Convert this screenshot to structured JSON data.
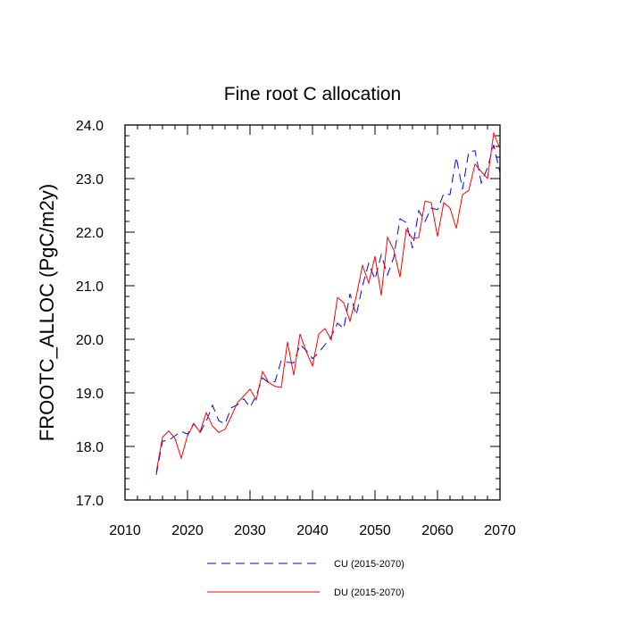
{
  "chart_data": {
    "type": "line",
    "title": "Fine root C allocation",
    "xlabel": "",
    "ylabel": "FROOTC_ALLOC  (PgC/m2y)",
    "xlim": [
      2010,
      2070
    ],
    "ylim": [
      17.0,
      24.0
    ],
    "xticks": [
      2010,
      2020,
      2030,
      2040,
      2050,
      2060,
      2070
    ],
    "xtick_labels": [
      "2010",
      "2020",
      "2030",
      "2040",
      "2050",
      "2060",
      "2070"
    ],
    "yticks": [
      17.0,
      18.0,
      19.0,
      20.0,
      21.0,
      22.0,
      23.0,
      24.0
    ],
    "ytick_labels": [
      "17.0",
      "18.0",
      "19.0",
      "20.0",
      "21.0",
      "22.0",
      "23.0",
      "24.0"
    ],
    "grid": false,
    "legend_position": "bottom",
    "x": [
      2015,
      2016,
      2017,
      2018,
      2019,
      2020,
      2021,
      2022,
      2023,
      2024,
      2025,
      2026,
      2027,
      2028,
      2029,
      2030,
      2031,
      2032,
      2033,
      2034,
      2035,
      2036,
      2037,
      2038,
      2039,
      2040,
      2041,
      2042,
      2043,
      2044,
      2045,
      2046,
      2047,
      2048,
      2049,
      2050,
      2051,
      2052,
      2053,
      2054,
      2055,
      2056,
      2057,
      2058,
      2059,
      2060,
      2061,
      2062,
      2063,
      2064,
      2065,
      2066,
      2067,
      2068,
      2069,
      2070
    ],
    "series": [
      {
        "name": "CU (2015-2070)",
        "color": "#0000ff",
        "dash": "dashed",
        "values": [
          17.47,
          18.1,
          18.11,
          18.2,
          18.28,
          18.23,
          18.43,
          18.26,
          18.47,
          18.77,
          18.48,
          18.42,
          18.72,
          18.78,
          18.89,
          18.73,
          18.95,
          19.28,
          19.19,
          19.21,
          19.6,
          19.57,
          19.56,
          19.9,
          19.79,
          19.64,
          19.75,
          19.9,
          20.05,
          20.3,
          20.2,
          20.85,
          20.45,
          21.0,
          21.42,
          21.12,
          21.58,
          21.2,
          21.53,
          22.25,
          22.18,
          21.7,
          22.4,
          22.2,
          22.45,
          22.42,
          22.72,
          22.7,
          23.4,
          22.8,
          23.5,
          23.52,
          22.92,
          23.2,
          23.63,
          23.1
        ]
      },
      {
        "name": "DU (2015-2070)",
        "color": "#ff0000",
        "dash": "solid",
        "values": [
          17.52,
          18.17,
          18.29,
          18.15,
          17.78,
          18.2,
          18.42,
          18.27,
          18.63,
          18.38,
          18.26,
          18.32,
          18.56,
          18.82,
          18.94,
          19.07,
          18.87,
          19.4,
          19.19,
          19.12,
          19.1,
          19.95,
          19.33,
          20.1,
          19.77,
          19.5,
          20.1,
          20.2,
          19.99,
          20.78,
          20.68,
          20.34,
          20.8,
          21.38,
          21.05,
          21.55,
          20.82,
          21.9,
          21.67,
          21.16,
          22.05,
          21.88,
          21.9,
          22.58,
          22.55,
          21.92,
          22.55,
          22.45,
          22.07,
          22.7,
          22.78,
          23.27,
          23.13,
          23.0,
          23.85,
          23.55
        ]
      }
    ]
  }
}
